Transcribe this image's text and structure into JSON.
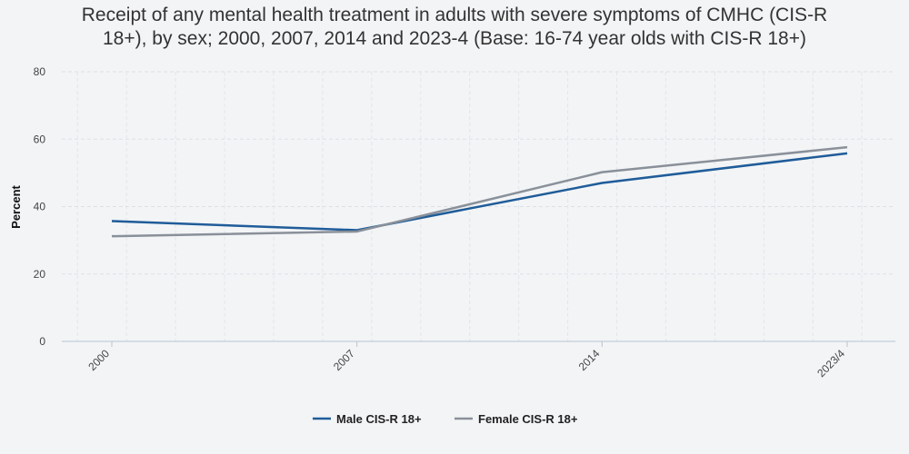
{
  "chart_data": {
    "type": "line",
    "title_line1": "Receipt of any mental health treatment in adults with severe symptoms of CMHC (CIS-R",
    "title_line2": "18+), by sex; 2000, 2007, 2014 and 2023-4 (Base: 16-74 year olds with CIS-R 18+)",
    "xlabel": "",
    "ylabel": "Percent",
    "categories": [
      "2000",
      "2007",
      "2014",
      "2023/4"
    ],
    "ylim": [
      0,
      80
    ],
    "yticks": [
      0,
      20,
      40,
      60,
      80
    ],
    "grid": true,
    "legend_position": "bottom",
    "series": [
      {
        "name": "Male CIS-R 18+",
        "color": "#1f5c99",
        "values": [
          35.7,
          33.0,
          47.0,
          55.8
        ]
      },
      {
        "name": "Female CIS-R 18+",
        "color": "#8a9099",
        "values": [
          31.2,
          32.6,
          50.2,
          57.6
        ]
      }
    ]
  }
}
